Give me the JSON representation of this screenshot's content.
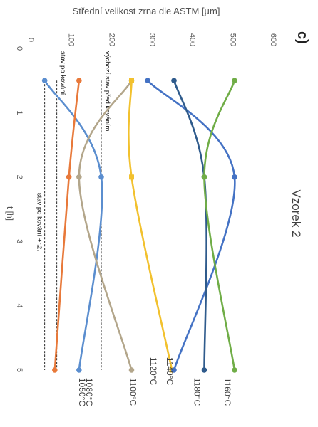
{
  "panel_label": "c)",
  "chart_data": {
    "type": "line",
    "title": "Vzorek 2",
    "xlabel": "t [h]",
    "ylabel": "Střední velikost zrna dle ASTM [µm]",
    "xlim": [
      0,
      5.5
    ],
    "ylim": [
      0,
      600
    ],
    "x_ticks": [
      "0",
      "1",
      "2",
      "3",
      "4",
      "5"
    ],
    "y_ticks": [
      "0",
      "100",
      "200",
      "300",
      "400",
      "500",
      "600"
    ],
    "orientation": "rotated 90° clockwise",
    "grid": false,
    "series": [
      {
        "name": "1080°C",
        "color": "#5b8ecf",
        "marker": "circle",
        "x": [
          0.5,
          2,
          5
        ],
        "y": [
          40,
          180,
          125
        ]
      },
      {
        "name": "1050°C",
        "color": "#e8793a",
        "marker": "circle",
        "x": [
          0.5,
          2,
          5
        ],
        "y": [
          125,
          100,
          65
        ]
      },
      {
        "name": "1100°C",
        "color": "#b3a68b",
        "marker": "circle",
        "x": [
          0.5,
          2,
          5
        ],
        "y": [
          255,
          125,
          255
        ]
      },
      {
        "name": "1120°C",
        "color": "#f2c12e",
        "marker": "square",
        "x": [
          0.5,
          2,
          5
        ],
        "y": [
          255,
          255,
          355
        ]
      },
      {
        "name": "1140°C",
        "color": "#4472c4",
        "marker": "circle",
        "x": [
          0.5,
          2,
          5
        ],
        "y": [
          295,
          510,
          360
        ]
      },
      {
        "name": "1180°C",
        "color": "#2f5b8c",
        "marker": "circle",
        "x": [
          0.5,
          2,
          5
        ],
        "y": [
          360,
          435,
          435
        ]
      },
      {
        "name": "1160°C",
        "color": "#70ad47",
        "marker": "circle",
        "x": [
          0.5,
          2,
          5
        ],
        "y": [
          510,
          435,
          510
        ]
      }
    ],
    "reference_lines": [
      {
        "label": "stav po kování",
        "y": 70
      },
      {
        "label": "výchozí stav před kováním",
        "y": 180
      },
      {
        "label": "stav po kování +r.ž.",
        "y": 40
      }
    ],
    "series_labels": [
      {
        "text": "1080°C",
        "series": 0
      },
      {
        "text": "1050°C",
        "series": 1
      },
      {
        "text": "1100°C",
        "series": 2
      },
      {
        "text": "1120°C",
        "series": 3
      },
      {
        "text": "1140°C",
        "series": 4
      },
      {
        "text": "1180°C",
        "series": 5
      },
      {
        "text": "1160°C",
        "series": 6
      }
    ]
  }
}
